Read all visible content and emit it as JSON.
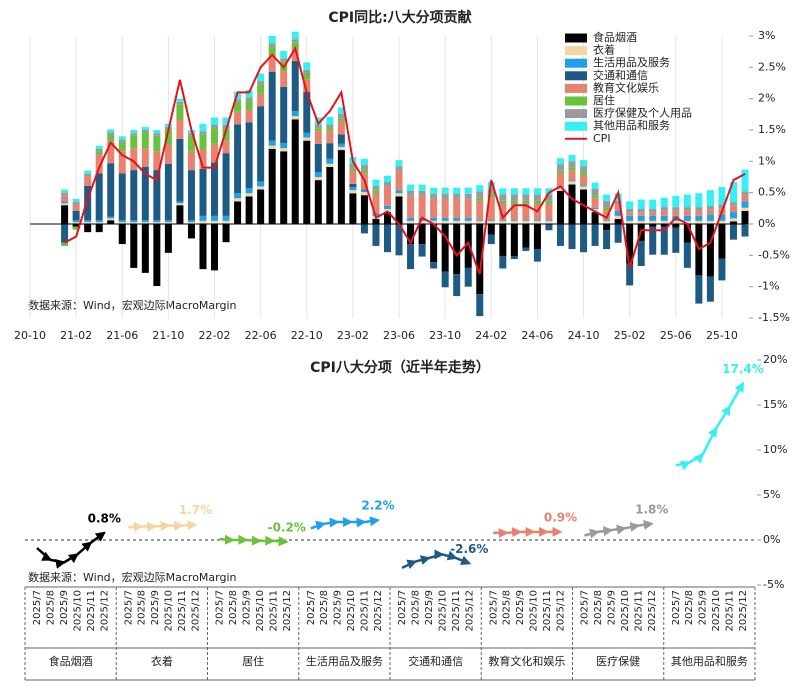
{
  "chart_data": [
    {
      "type": "bar",
      "stacked": true,
      "title": "CPI同比:八大分项贡献",
      "source": "数据来源：Wind，宏观边际MacroMargin",
      "categories": [
        "20-10",
        null,
        null,
        null,
        "21-02",
        null,
        null,
        null,
        "21-06",
        null,
        null,
        null,
        "21-10",
        null,
        null,
        null,
        "22-02",
        null,
        null,
        null,
        "22-06",
        null,
        null,
        null,
        "22-10",
        null,
        null,
        null,
        "23-02",
        null,
        null,
        null,
        "23-06",
        null,
        null,
        null,
        "23-10",
        null,
        null,
        null,
        "24-02",
        null,
        null,
        null,
        "24-06",
        null,
        null,
        null,
        "24-10",
        null,
        null,
        null,
        "25-02",
        null,
        null,
        null,
        "25-06",
        null,
        null,
        null,
        "25-10",
        null,
        null
      ],
      "ylim": [
        -1.5,
        3
      ],
      "yticks": [
        {
          "value": -1.5,
          "label": "-1.5%"
        },
        {
          "value": -1,
          "label": "-1%"
        },
        {
          "value": -0.5,
          "label": "-0.5%"
        },
        {
          "value": 0,
          "label": "0%"
        },
        {
          "value": 0.5,
          "label": "0.5%"
        },
        {
          "value": 1,
          "label": "1%"
        },
        {
          "value": 1.5,
          "label": "1.5%"
        },
        {
          "value": 2,
          "label": "2%"
        },
        {
          "value": 2.5,
          "label": "2.5%"
        },
        {
          "value": 3,
          "label": "3%"
        }
      ],
      "grid": true,
      "legend": "top-right",
      "series": [
        {
          "name": "食品烟酒",
          "color": "#000000",
          "values": [
            null,
            null,
            null,
            0.3,
            -0.04,
            -0.13,
            -0.13,
            0.06,
            -0.32,
            -0.7,
            -0.78,
            -0.99,
            -0.46,
            0.3,
            -0.23,
            -0.72,
            -0.74,
            -0.29,
            0.36,
            0.44,
            0.55,
            1.2,
            1.16,
            1.67,
            1.33,
            0.7,
            0.91,
            1.18,
            0.49,
            0.46,
            0.08,
            0.19,
            0.44,
            -0.32,
            -0.32,
            -0.61,
            -0.76,
            -0.8,
            -0.7,
            -1.12,
            -0.17,
            -0.51,
            -0.51,
            -0.38,
            -0.4,
            0,
            0.53,
            0.63,
            0.55,
            0.19,
            -0.1,
            0.08,
            -0.63,
            -0.27,
            -0.04,
            -0.04,
            -0.06,
            -0.3,
            -0.82,
            -0.84,
            -0.55,
            0.04,
            0.21
          ]
        },
        {
          "name": "衣着",
          "color": "#f5d6a0",
          "values": [
            null,
            null,
            null,
            0.03,
            0.03,
            0.03,
            0.03,
            0.03,
            0.03,
            0.03,
            0.03,
            0.03,
            0.03,
            0.03,
            0.03,
            0.05,
            0.05,
            0.05,
            0.05,
            0.05,
            0.05,
            0.05,
            0.05,
            0.05,
            0.05,
            0.05,
            0.05,
            0.05,
            0.05,
            0.05,
            0.05,
            0.05,
            0.05,
            0.05,
            0.05,
            0.05,
            0.05,
            0.05,
            0.05,
            0.05,
            0.05,
            0.05,
            0.05,
            0.05,
            0.05,
            0.05,
            0.05,
            0.05,
            0.05,
            0.05,
            0.05,
            0.05,
            0.05,
            0.05,
            0.05,
            0.05,
            0.05,
            0.05,
            0.05,
            0.05,
            0.05,
            0.05,
            0.05
          ]
        },
        {
          "name": "生活用品及服务",
          "color": "#1fa0e8",
          "values": [
            null,
            null,
            null,
            0.03,
            0.03,
            0.03,
            0.03,
            0.03,
            0.03,
            0.03,
            0.03,
            0.03,
            0.03,
            0.03,
            0.03,
            0.08,
            0.08,
            0.08,
            0.08,
            0.08,
            0.08,
            0.08,
            0.08,
            0.08,
            0.08,
            0.08,
            0.08,
            0.05,
            0.05,
            0.05,
            0.05,
            0.05,
            0.05,
            0.05,
            0.05,
            0.05,
            0.05,
            0.05,
            0.05,
            0.02,
            0.02,
            0.02,
            0.02,
            0.02,
            0.02,
            0.02,
            0.02,
            0.02,
            0.02,
            0.02,
            0.02,
            0.08,
            0.08,
            0.08,
            0.08,
            0.08,
            0.08,
            0.08,
            0.08,
            0.1,
            0.1,
            0.1,
            0.1
          ]
        },
        {
          "name": "交通和通信",
          "color": "#1d5b85",
          "values": [
            null,
            null,
            null,
            -0.3,
            0.15,
            0.55,
            0.75,
            0.85,
            0.75,
            0.8,
            0.85,
            0.8,
            0.9,
            1.0,
            0.8,
            0.75,
            0.85,
            1.0,
            1.1,
            1.05,
            1.2,
            1.1,
            0.9,
            0.8,
            0.65,
            0.45,
            0.25,
            0.15,
            0.05,
            -0.15,
            -0.35,
            -0.45,
            -0.5,
            -0.4,
            -0.2,
            -0.1,
            -0.25,
            -0.35,
            -0.3,
            -0.35,
            -0.15,
            -0.2,
            -0.05,
            -0.05,
            -0.2,
            -0.1,
            -0.35,
            -0.4,
            -0.45,
            -0.35,
            -0.3,
            -0.3,
            -0.35,
            -0.4,
            -0.45,
            -0.45,
            -0.4,
            -0.4,
            -0.45,
            -0.4,
            -0.35,
            -0.25,
            -0.2
          ]
        },
        {
          "name": "教育文化娱乐",
          "color": "#e8826f",
          "values": [
            null,
            null,
            null,
            0.1,
            0.1,
            0.15,
            0.3,
            0.35,
            0.35,
            0.35,
            0.3,
            0.3,
            0.3,
            0.3,
            0.3,
            0.3,
            0.3,
            0.2,
            0.2,
            0.2,
            0.2,
            0.25,
            0.25,
            0.2,
            0.2,
            0.2,
            0.2,
            0.2,
            0.2,
            0.25,
            0.3,
            0.3,
            0.3,
            0.35,
            0.35,
            0.3,
            0.3,
            0.3,
            0.3,
            0.3,
            0.35,
            0.25,
            0.25,
            0.25,
            0.25,
            0.25,
            0.2,
            0.15,
            0.15,
            0.15,
            0.15,
            0.1,
            0.05,
            0.05,
            0.05,
            0.08,
            0.08,
            0.08,
            0.08,
            0.08,
            0.1,
            0.1,
            0.1
          ]
        },
        {
          "name": "居住",
          "color": "#6ac13c",
          "values": [
            null,
            null,
            null,
            -0.05,
            -0.05,
            0,
            0.05,
            0.1,
            0.15,
            0.2,
            0.25,
            0.25,
            0.25,
            0.25,
            0.25,
            0.25,
            0.25,
            0.2,
            0.15,
            0.15,
            0.15,
            0.15,
            0.15,
            0.1,
            0.1,
            0.05,
            0.05,
            0.05,
            0.05,
            0.05,
            0.05,
            0,
            0,
            0,
            0,
            0,
            0,
            0,
            0,
            0.05,
            0.05,
            0.05,
            0.05,
            0.05,
            0.05,
            0.05,
            0.05,
            0.05,
            0.05,
            0.05,
            0.05,
            0,
            0,
            0,
            0,
            0,
            0,
            0,
            0,
            0,
            0,
            0,
            0
          ]
        },
        {
          "name": "医疗保健及个人用品",
          "color": "#9a9a9a",
          "values": [
            null,
            null,
            null,
            0.04,
            0.04,
            0.04,
            0.04,
            0.04,
            0.04,
            0.04,
            0.04,
            0.04,
            0.04,
            0.04,
            0.04,
            0.05,
            0.05,
            0.05,
            0.05,
            0.05,
            0.05,
            0.05,
            0.05,
            0.05,
            0.05,
            0.05,
            0.05,
            0.08,
            0.08,
            0.08,
            0.08,
            0.08,
            0.08,
            0.08,
            0.08,
            0.08,
            0.08,
            0.08,
            0.08,
            0.1,
            0.1,
            0.1,
            0.1,
            0.1,
            0.1,
            0.1,
            0.1,
            0.1,
            0.1,
            0.1,
            0.1,
            0.06,
            0.06,
            0.06,
            0.06,
            0.06,
            0.06,
            0.06,
            0.06,
            0.06,
            0.06,
            0.06,
            0.06
          ]
        },
        {
          "name": "其他用品和服务",
          "color": "#33f0f5",
          "values": [
            null,
            null,
            null,
            0.05,
            0.05,
            0.05,
            0.05,
            0.05,
            0.05,
            0.05,
            0.05,
            0.05,
            0.05,
            0.05,
            0.05,
            0.12,
            0.12,
            0.12,
            0.12,
            0.12,
            0.12,
            0.12,
            0.12,
            0.12,
            0.12,
            0.12,
            0.12,
            0.1,
            0.1,
            0.1,
            0.1,
            0.1,
            0.1,
            0.1,
            0.1,
            0.1,
            0.1,
            0.1,
            0.1,
            0.1,
            0.1,
            0.1,
            0.1,
            0.1,
            0.1,
            0.1,
            0.1,
            0.1,
            0.1,
            0.1,
            0.1,
            0.12,
            0.12,
            0.15,
            0.15,
            0.15,
            0.18,
            0.2,
            0.22,
            0.25,
            0.28,
            0.32,
            0.35
          ]
        },
        {
          "name": "CPI",
          "type": "line",
          "color": "#e0141e",
          "values": [
            null,
            null,
            null,
            -0.3,
            -0.2,
            0.4,
            0.9,
            1.3,
            1.1,
            1.0,
            0.8,
            0.7,
            1.5,
            2.3,
            1.5,
            0.9,
            0.9,
            1.5,
            2.1,
            2.1,
            2.5,
            2.7,
            2.5,
            2.8,
            2.1,
            1.6,
            1.8,
            2.1,
            1.0,
            0.7,
            0.1,
            0.2,
            0.0,
            -0.3,
            0.1,
            0.0,
            -0.2,
            -0.5,
            -0.3,
            -0.8,
            0.7,
            0.1,
            0.3,
            0.3,
            0.2,
            0.5,
            0.6,
            0.4,
            0.3,
            0.2,
            0.1,
            0.5,
            -0.7,
            -0.1,
            -0.1,
            -0.1,
            0.1,
            0.0,
            -0.4,
            -0.3,
            0.2,
            0.7,
            0.8
          ]
        }
      ]
    },
    {
      "type": "line",
      "title": "CPI八大分项（近半年走势）",
      "source": "数据来源：Wind，宏观边际MacroMargin",
      "categories": [
        "2025/7",
        "2025/8",
        "2025/9",
        "2025/10",
        "2025/11",
        "2025/12"
      ],
      "ylim": [
        -5,
        20
      ],
      "yticks": [
        {
          "value": -5,
          "label": "-5%"
        },
        {
          "value": 0,
          "label": "0%"
        },
        {
          "value": 5,
          "label": "5%"
        },
        {
          "value": 10,
          "label": "10%"
        },
        {
          "value": 15,
          "label": "15%"
        },
        {
          "value": 20,
          "label": "20%"
        }
      ],
      "series": [
        {
          "name": "食品烟酒",
          "color": "#000000",
          "values": [
            -0.9,
            -2.2,
            -2.5,
            -1.6,
            -0.3,
            0.8
          ],
          "value_labels": [
            null,
            null,
            null,
            null,
            null,
            "0.8%"
          ]
        },
        {
          "name": "衣着",
          "color": "#f5d6a0",
          "values": [
            1.4,
            1.5,
            1.5,
            1.6,
            1.6,
            1.7
          ],
          "value_labels": [
            null,
            null,
            null,
            null,
            null,
            "1.7%"
          ]
        },
        {
          "name": "居住",
          "color": "#6ac13c",
          "values": [
            0.1,
            0.0,
            0.0,
            -0.1,
            -0.1,
            -0.2
          ],
          "value_labels": [
            null,
            null,
            null,
            null,
            null,
            "-0.2%"
          ]
        },
        {
          "name": "生活用品及服务",
          "color": "#1fa0e8",
          "values": [
            1.3,
            1.8,
            2.0,
            2.0,
            2.0,
            2.2
          ],
          "value_labels": [
            null,
            null,
            null,
            null,
            null,
            "2.2%"
          ]
        },
        {
          "name": "交通和通信",
          "color": "#1d5b85",
          "values": [
            -3.1,
            -2.4,
            -2.0,
            -1.6,
            -2.0,
            -2.6
          ],
          "value_labels": [
            null,
            null,
            null,
            null,
            null,
            "-2.6%"
          ]
        },
        {
          "name": "教育文化和娱乐",
          "color": "#e8826f",
          "values": [
            0.8,
            0.8,
            0.9,
            0.9,
            0.9,
            0.9
          ],
          "value_labels": [
            null,
            null,
            null,
            null,
            null,
            "0.9%"
          ]
        },
        {
          "name": "医疗保健",
          "color": "#9a9a9a",
          "values": [
            0.5,
            0.9,
            1.1,
            1.3,
            1.6,
            1.8
          ],
          "value_labels": [
            null,
            null,
            null,
            null,
            null,
            "1.8%"
          ]
        },
        {
          "name": "其他用品和服务",
          "color": "#33f0f5",
          "values": [
            8.3,
            8.6,
            9.5,
            12.4,
            14.8,
            17.4
          ],
          "value_labels": [
            null,
            null,
            null,
            null,
            null,
            "17.4%"
          ]
        }
      ]
    }
  ]
}
